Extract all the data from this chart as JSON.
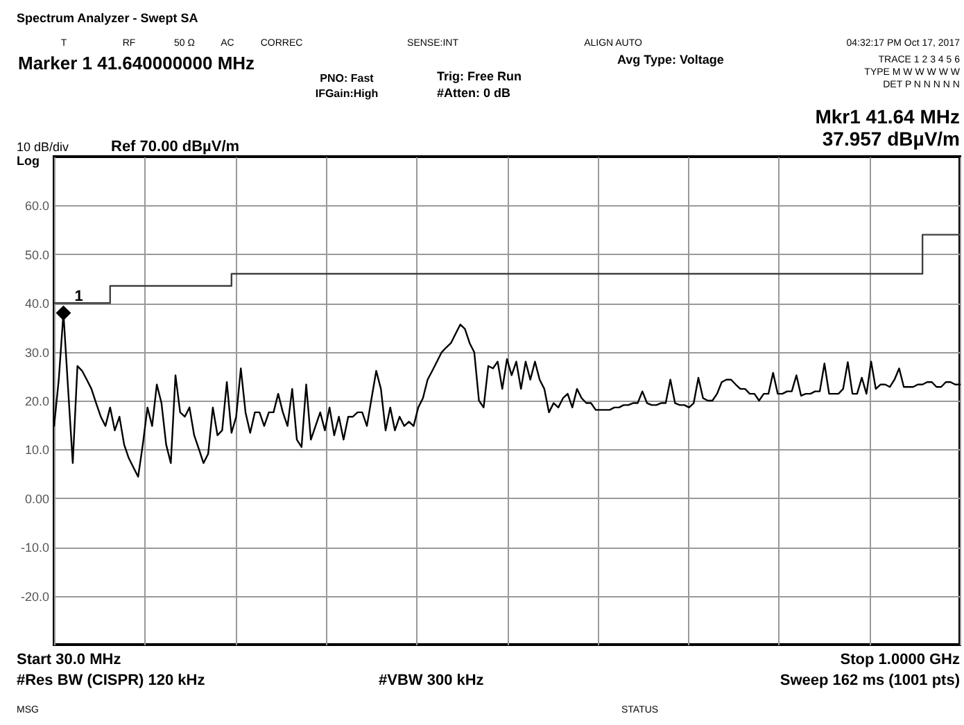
{
  "chart_data": {
    "type": "line",
    "title": "Spectrum Analyzer - Swept SA",
    "categories": [
      null,
      null,
      null,
      null,
      null,
      null,
      null,
      null,
      null,
      null,
      null,
      null,
      null,
      null,
      null,
      null,
      null,
      null,
      null,
      null,
      null,
      null,
      null,
      null,
      null,
      null,
      null,
      null,
      null,
      null,
      null,
      null,
      null,
      null,
      null,
      null,
      null,
      null,
      null,
      null,
      null,
      null,
      null,
      null,
      null,
      null,
      null,
      null,
      null,
      null,
      null,
      null,
      null,
      null,
      null,
      null,
      null,
      null,
      null,
      null,
      null,
      null,
      null,
      null,
      null,
      null,
      null,
      null,
      null,
      null,
      null,
      null,
      null,
      null,
      null,
      null,
      null,
      null,
      null,
      null,
      null,
      null,
      null,
      null,
      null,
      null,
      null,
      null,
      null,
      null,
      null,
      null,
      null,
      null,
      null,
      null,
      null,
      null,
      null,
      null,
      null,
      null,
      null,
      null,
      null,
      null,
      null,
      null,
      null,
      null,
      null,
      null,
      null,
      null,
      null,
      null,
      null,
      null,
      null,
      null,
      null,
      null,
      null,
      null,
      null,
      null,
      null,
      null,
      null,
      null,
      null,
      null,
      null,
      null,
      null,
      null,
      null,
      null,
      null,
      null,
      null,
      null,
      null,
      null,
      null,
      null,
      null,
      null,
      null,
      null,
      null,
      null,
      null,
      null,
      null,
      null,
      null,
      null,
      null,
      null,
      null,
      null,
      null,
      null,
      null,
      null,
      null,
      null,
      null,
      null,
      null,
      null,
      null,
      null,
      null,
      null,
      null,
      null,
      null,
      null,
      null,
      null,
      null,
      null,
      null,
      null,
      null,
      null,
      null,
      null,
      null,
      null,
      null,
      null,
      null
    ],
    "ylim": [
      -30,
      70
    ],
    "yticks": [
      {
        "value": 60,
        "label": "60.0"
      },
      {
        "value": 50,
        "label": "50.0"
      },
      {
        "value": 40,
        "label": "40.0"
      },
      {
        "value": 30,
        "label": "30.0"
      },
      {
        "value": 20,
        "label": "20.0"
      },
      {
        "value": 10,
        "label": "10.0"
      },
      {
        "value": 0,
        "label": "0.00"
      },
      {
        "value": -10,
        "label": "-10.0"
      },
      {
        "value": -20,
        "label": "-20.0"
      }
    ],
    "tick_labels": "y",
    "grid": true,
    "series": [
      {
        "color": "#000000",
        "values": [
          14.8,
          24.3,
          37.957,
          22.4,
          7.2,
          27.1,
          26.1,
          24.3,
          22.4,
          19.5,
          16.7,
          14.8,
          18.6,
          13.9,
          16.7,
          11.0,
          8.2,
          6.3,
          4.4,
          11.0,
          18.6,
          14.8,
          23.3,
          19.5,
          11.0,
          7.2,
          25.2,
          17.6,
          16.7,
          18.6,
          12.9,
          10.1,
          7.2,
          9.1,
          18.6,
          12.9,
          13.9,
          23.8,
          13.4,
          16.7,
          26.6,
          17.6,
          13.4,
          17.6,
          17.6,
          14.8,
          17.6,
          17.6,
          21.4,
          17.6,
          14.8,
          22.4,
          12.0,
          10.5,
          23.3,
          12.0,
          14.8,
          17.6,
          13.9,
          18.6,
          12.9,
          16.7,
          12.0,
          16.7,
          16.7,
          17.6,
          17.6,
          14.8,
          20.5,
          26.1,
          22.4,
          13.9,
          18.6,
          13.9,
          16.7,
          14.8,
          15.7,
          14.8,
          18.6,
          20.5,
          24.3,
          26.1,
          28.0,
          29.9,
          30.9,
          31.8,
          33.7,
          35.6,
          34.7,
          31.8,
          29.9,
          20.0,
          18.6,
          27.1,
          26.6,
          28.0,
          22.4,
          28.5,
          25.2,
          28.0,
          22.4,
          28.0,
          24.3,
          28.0,
          24.3,
          22.4,
          17.6,
          19.5,
          18.6,
          20.5,
          21.4,
          18.6,
          22.4,
          20.5,
          19.5,
          19.5,
          18.1,
          18.1,
          18.1,
          18.1,
          18.6,
          18.6,
          19.1,
          19.1,
          19.5,
          19.5,
          21.9,
          19.5,
          19.1,
          19.1,
          19.5,
          19.5,
          24.3,
          19.5,
          19.1,
          19.1,
          18.6,
          19.5,
          24.7,
          20.5,
          20.0,
          20.0,
          21.4,
          23.8,
          24.3,
          24.3,
          23.3,
          22.4,
          22.4,
          21.4,
          21.4,
          20.0,
          21.4,
          21.4,
          25.7,
          21.4,
          21.4,
          21.9,
          21.9,
          25.2,
          21.0,
          21.4,
          21.4,
          21.9,
          21.9,
          27.6,
          21.4,
          21.4,
          21.4,
          22.4,
          27.9,
          21.4,
          21.4,
          24.7,
          21.4,
          28.0,
          22.4,
          23.3,
          23.3,
          22.8,
          24.3,
          26.6,
          22.8,
          22.8,
          22.8,
          23.3,
          23.3,
          23.8,
          23.8,
          22.8,
          22.8,
          23.8,
          23.8,
          23.3,
          23.3
        ]
      },
      {
        "type": "step",
        "color": "#404040",
        "values": [
          40,
          40,
          40,
          40,
          40,
          40,
          40,
          40,
          40,
          40,
          40,
          40,
          43.5,
          43.5,
          43.5,
          43.5,
          43.5,
          43.5,
          43.5,
          43.5,
          43.5,
          43.5,
          43.5,
          43.5,
          43.5,
          43.5,
          43.5,
          43.5,
          43.5,
          43.5,
          43.5,
          43.5,
          43.5,
          43.5,
          43.5,
          43.5,
          43.5,
          43.5,
          46,
          46,
          46,
          46,
          46,
          46,
          46,
          46,
          46,
          46,
          46,
          46,
          46,
          46,
          46,
          46,
          46,
          46,
          46,
          46,
          46,
          46,
          46,
          46,
          46,
          46,
          46,
          46,
          46,
          46,
          46,
          46,
          46,
          46,
          46,
          46,
          46,
          46,
          46,
          46,
          46,
          46,
          46,
          46,
          46,
          46,
          46,
          46,
          46,
          46,
          46,
          46,
          46,
          46,
          46,
          46,
          46,
          46,
          46,
          46,
          46,
          46,
          46,
          46,
          46,
          46,
          46,
          46,
          46,
          46,
          46,
          46,
          46,
          46,
          46,
          46,
          46,
          46,
          46,
          46,
          46,
          46,
          46,
          46,
          46,
          46,
          46,
          46,
          46,
          46,
          46,
          46,
          46,
          46,
          46,
          46,
          46,
          46,
          46,
          46,
          46,
          46,
          46,
          46,
          46,
          46,
          46,
          46,
          46,
          46,
          46,
          46,
          46,
          46,
          46,
          46,
          46,
          46,
          46,
          46,
          46,
          46,
          46,
          46,
          46,
          46,
          46,
          46,
          46,
          46,
          46,
          46,
          46,
          46,
          46,
          46,
          46,
          46,
          46,
          46,
          46,
          46,
          46,
          46,
          46,
          46,
          46,
          46,
          54,
          54,
          54,
          54,
          54,
          54,
          54,
          54,
          54
        ]
      },
      {
        "type": "scatter",
        "marker": "diamond",
        "color": "#000000",
        "values": [
          null,
          null,
          37.957,
          null,
          null,
          null,
          null,
          null,
          null,
          null,
          null,
          null,
          null,
          null,
          null,
          null,
          null,
          null,
          null,
          null,
          null,
          null,
          null,
          null,
          null,
          null,
          null,
          null,
          null,
          null,
          null,
          null,
          null,
          null,
          null,
          null,
          null,
          null,
          null,
          null,
          null,
          null,
          null,
          null,
          null,
          null,
          null,
          null,
          null,
          null,
          null,
          null,
          null,
          null,
          null,
          null,
          null,
          null,
          null,
          null,
          null,
          null,
          null,
          null,
          null,
          null,
          null,
          null,
          null,
          null,
          null,
          null,
          null,
          null,
          null,
          null,
          null,
          null,
          null,
          null,
          null,
          null,
          null,
          null,
          null,
          null,
          null,
          null,
          null,
          null,
          null,
          null,
          null,
          null,
          null,
          null,
          null,
          null,
          null,
          null,
          null,
          null,
          null,
          null,
          null,
          null,
          null,
          null,
          null,
          null,
          null,
          null,
          null,
          null,
          null,
          null,
          null,
          null,
          null,
          null,
          null,
          null,
          null,
          null,
          null,
          null,
          null,
          null,
          null,
          null,
          null,
          null,
          null,
          null,
          null,
          null,
          null,
          null,
          null,
          null,
          null,
          null,
          null,
          null,
          null,
          null,
          null,
          null,
          null,
          null,
          null,
          null,
          null,
          null,
          null,
          null,
          null,
          null,
          null,
          null,
          null,
          null,
          null,
          null,
          null,
          null,
          null,
          null,
          null,
          null,
          null,
          null,
          null,
          null,
          null,
          null,
          null,
          null,
          null,
          null,
          null,
          null,
          null,
          null,
          null,
          null,
          null,
          null,
          null,
          null,
          null,
          null,
          null,
          null,
          null
        ]
      }
    ],
    "annotations": [
      "T",
      "RF",
      "50 Ω",
      "AC",
      "CORREC",
      "SENSE:INT",
      "ALIGN AUTO",
      "04:32:17 PM Oct 17, 2017",
      "Marker 1 41.640000000 MHz",
      "PNO: Fast",
      "IFGain:High",
      "Trig: Free Run",
      "#Atten: 0 dB",
      "Avg Type: Voltage",
      "TRACE 1 2 3 4 5 6",
      "TYPE M W W W W W",
      "DET P N N N N N",
      "Mkr1 41.64 MHz",
      "37.957 dBµV/m",
      "10 dB/div",
      "Log",
      "Ref 70.00 dBµV/m",
      "Start 30.0 MHz",
      "Stop 1.0000 GHz",
      "#Res BW (CISPR)  120 kHz",
      "#VBW 300 kHz",
      "Sweep  162 ms (1001 pts)",
      "MSG",
      "STATUS",
      "1"
    ]
  }
}
